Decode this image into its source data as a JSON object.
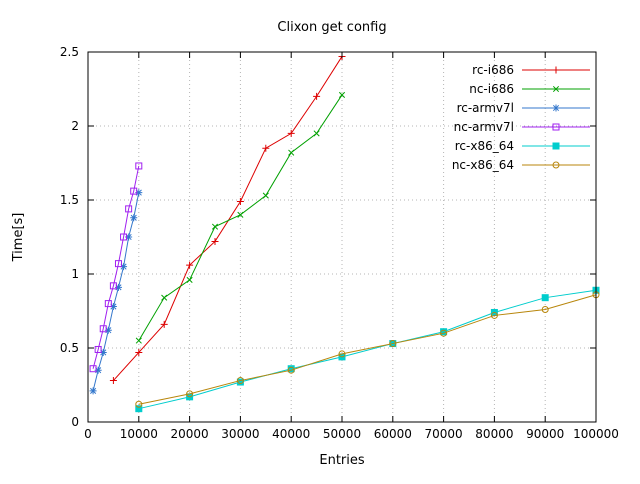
{
  "chart_data": {
    "type": "line",
    "title": "Clixon get config",
    "xlabel": "Entries",
    "ylabel": "Time[s]",
    "xlim": [
      0,
      100000
    ],
    "ylim": [
      0,
      2.5
    ],
    "xticks": [
      0,
      10000,
      20000,
      30000,
      40000,
      50000,
      60000,
      70000,
      80000,
      90000,
      100000
    ],
    "xtick_labels": [
      "0",
      "10000",
      "20000",
      "30000",
      "40000",
      "50000",
      "60000",
      "70000",
      "80000",
      "90000",
      "100000"
    ],
    "yticks": [
      0,
      0.5,
      1,
      1.5,
      2,
      2.5
    ],
    "ytick_labels": [
      "0",
      "0.5",
      "1",
      "1.5",
      "2",
      "2.5"
    ],
    "grid": true,
    "legend_position": "top-right-inside",
    "colors": {
      "grid": "#b5b5b5",
      "border": "#000000",
      "background": "#ffffff"
    },
    "series": [
      {
        "name": "rc-i686",
        "color": "#dd0000",
        "marker": "plus",
        "points": [
          [
            5000,
            0.28
          ],
          [
            10000,
            0.47
          ],
          [
            15000,
            0.66
          ],
          [
            20000,
            1.06
          ],
          [
            25000,
            1.22
          ],
          [
            30000,
            1.49
          ],
          [
            35000,
            1.85
          ],
          [
            40000,
            1.95
          ],
          [
            45000,
            2.2
          ],
          [
            50000,
            2.47
          ]
        ]
      },
      {
        "name": "nc-i686",
        "color": "#00a000",
        "marker": "cross",
        "points": [
          [
            10000,
            0.55
          ],
          [
            15000,
            0.84
          ],
          [
            20000,
            0.96
          ],
          [
            25000,
            1.32
          ],
          [
            30000,
            1.4
          ],
          [
            35000,
            1.53
          ],
          [
            40000,
            1.82
          ],
          [
            45000,
            1.95
          ],
          [
            50000,
            2.21
          ]
        ]
      },
      {
        "name": "rc-armv7l",
        "color": "#3377cc",
        "marker": "asterisk",
        "points": [
          [
            1000,
            0.21
          ],
          [
            2000,
            0.35
          ],
          [
            3000,
            0.47
          ],
          [
            4000,
            0.62
          ],
          [
            5000,
            0.78
          ],
          [
            6000,
            0.91
          ],
          [
            7000,
            1.05
          ],
          [
            8000,
            1.25
          ],
          [
            9000,
            1.38
          ],
          [
            10000,
            1.55
          ]
        ]
      },
      {
        "name": "nc-armv7l",
        "color": "#a020f0",
        "marker": "square-open",
        "points": [
          [
            1000,
            0.36
          ],
          [
            2000,
            0.49
          ],
          [
            3000,
            0.63
          ],
          [
            4000,
            0.8
          ],
          [
            5000,
            0.92
          ],
          [
            6000,
            1.07
          ],
          [
            7000,
            1.25
          ],
          [
            8000,
            1.44
          ],
          [
            9000,
            1.56
          ],
          [
            10000,
            1.73
          ]
        ]
      },
      {
        "name": "rc-x86_64",
        "color": "#00cdcd",
        "marker": "square-filled",
        "points": [
          [
            10000,
            0.09
          ],
          [
            20000,
            0.17
          ],
          [
            30000,
            0.27
          ],
          [
            40000,
            0.36
          ],
          [
            50000,
            0.44
          ],
          [
            60000,
            0.53
          ],
          [
            70000,
            0.61
          ],
          [
            80000,
            0.74
          ],
          [
            90000,
            0.84
          ],
          [
            100000,
            0.89
          ]
        ]
      },
      {
        "name": "nc-x86_64",
        "color": "#b8860b",
        "marker": "circle-open",
        "points": [
          [
            10000,
            0.12
          ],
          [
            20000,
            0.19
          ],
          [
            30000,
            0.28
          ],
          [
            40000,
            0.35
          ],
          [
            50000,
            0.46
          ],
          [
            60000,
            0.53
          ],
          [
            70000,
            0.6
          ],
          [
            80000,
            0.72
          ],
          [
            90000,
            0.76
          ],
          [
            100000,
            0.86
          ]
        ]
      }
    ]
  }
}
